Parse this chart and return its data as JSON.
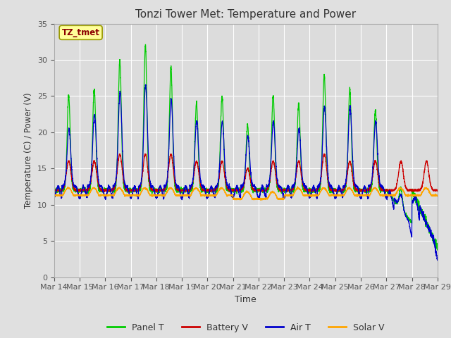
{
  "title": "Tonzi Tower Met: Temperature and Power",
  "xlabel": "Time",
  "ylabel": "Temperature (C) / Power (V)",
  "ylim": [
    0,
    35
  ],
  "yticks": [
    0,
    5,
    10,
    15,
    20,
    25,
    30,
    35
  ],
  "xtick_labels": [
    "Mar 14",
    "Mar 15",
    "Mar 16",
    "Mar 17",
    "Mar 18",
    "Mar 19",
    "Mar 20",
    "Mar 21",
    "Mar 22",
    "Mar 23",
    "Mar 24",
    "Mar 25",
    "Mar 26",
    "Mar 27",
    "Mar 28",
    "Mar 29"
  ],
  "annotation_text": "TZ_tmet",
  "annotation_color": "#8B0000",
  "annotation_bg": "#FFFF99",
  "annotation_border": "#999900",
  "colors": {
    "Panel T": "#00CC00",
    "Battery V": "#CC0000",
    "Air T": "#0000CC",
    "Solar V": "#FFA500"
  },
  "legend_labels": [
    "Panel T",
    "Battery V",
    "Air T",
    "Solar V"
  ],
  "fig_bg": "#E0E0E0",
  "plot_bg": "#DCDCDC"
}
